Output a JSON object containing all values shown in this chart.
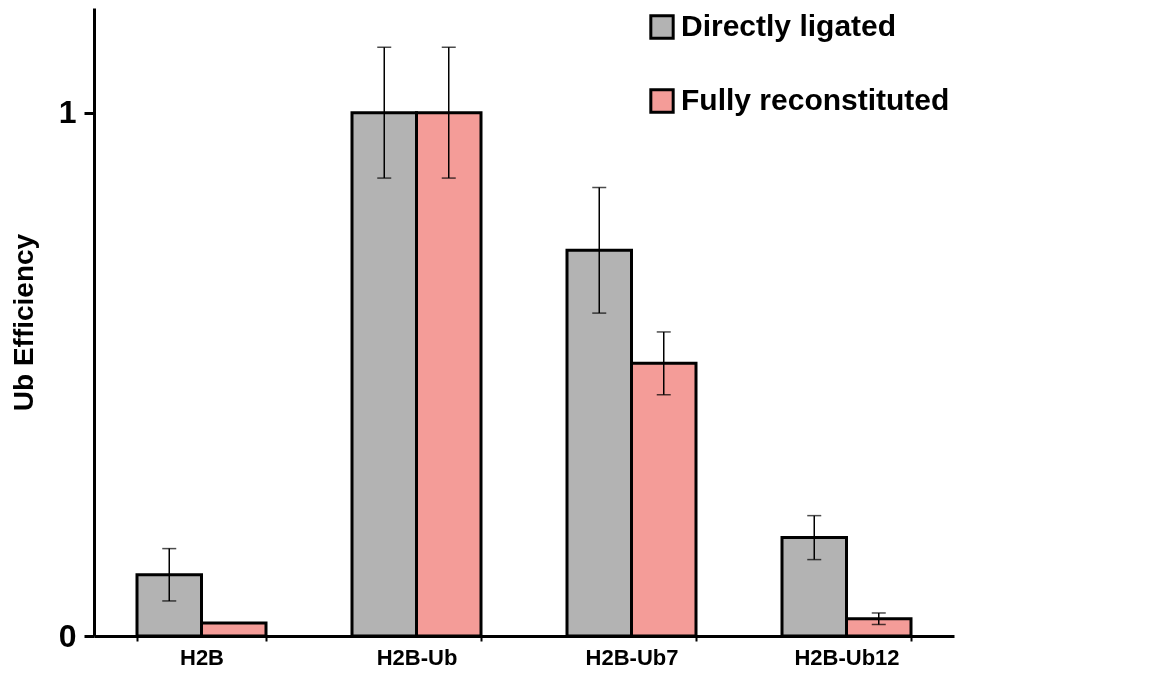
{
  "chart_data": {
    "type": "bar",
    "ylabel": "Ub Efficiency",
    "categories": [
      "H2B",
      "H2B-Ub",
      "H2B-Ub7",
      "H2B-Ub12"
    ],
    "series": [
      {
        "name": "Directly ligated",
        "color": "#b3b3b3",
        "values": [
          0.117,
          1,
          0.737,
          0.188
        ],
        "errors": [
          0.05,
          0.125,
          0.12,
          0.042
        ]
      },
      {
        "name": "Fully reconstituted",
        "color": "#f49c98",
        "values": [
          0.025,
          1,
          0.521,
          0.033
        ],
        "errors": [
          null,
          0.125,
          0.06,
          0.011
        ]
      }
    ],
    "ylim": [
      0,
      1.2
    ],
    "yticks": [
      0,
      1
    ],
    "grid": false,
    "legend": "top right"
  }
}
